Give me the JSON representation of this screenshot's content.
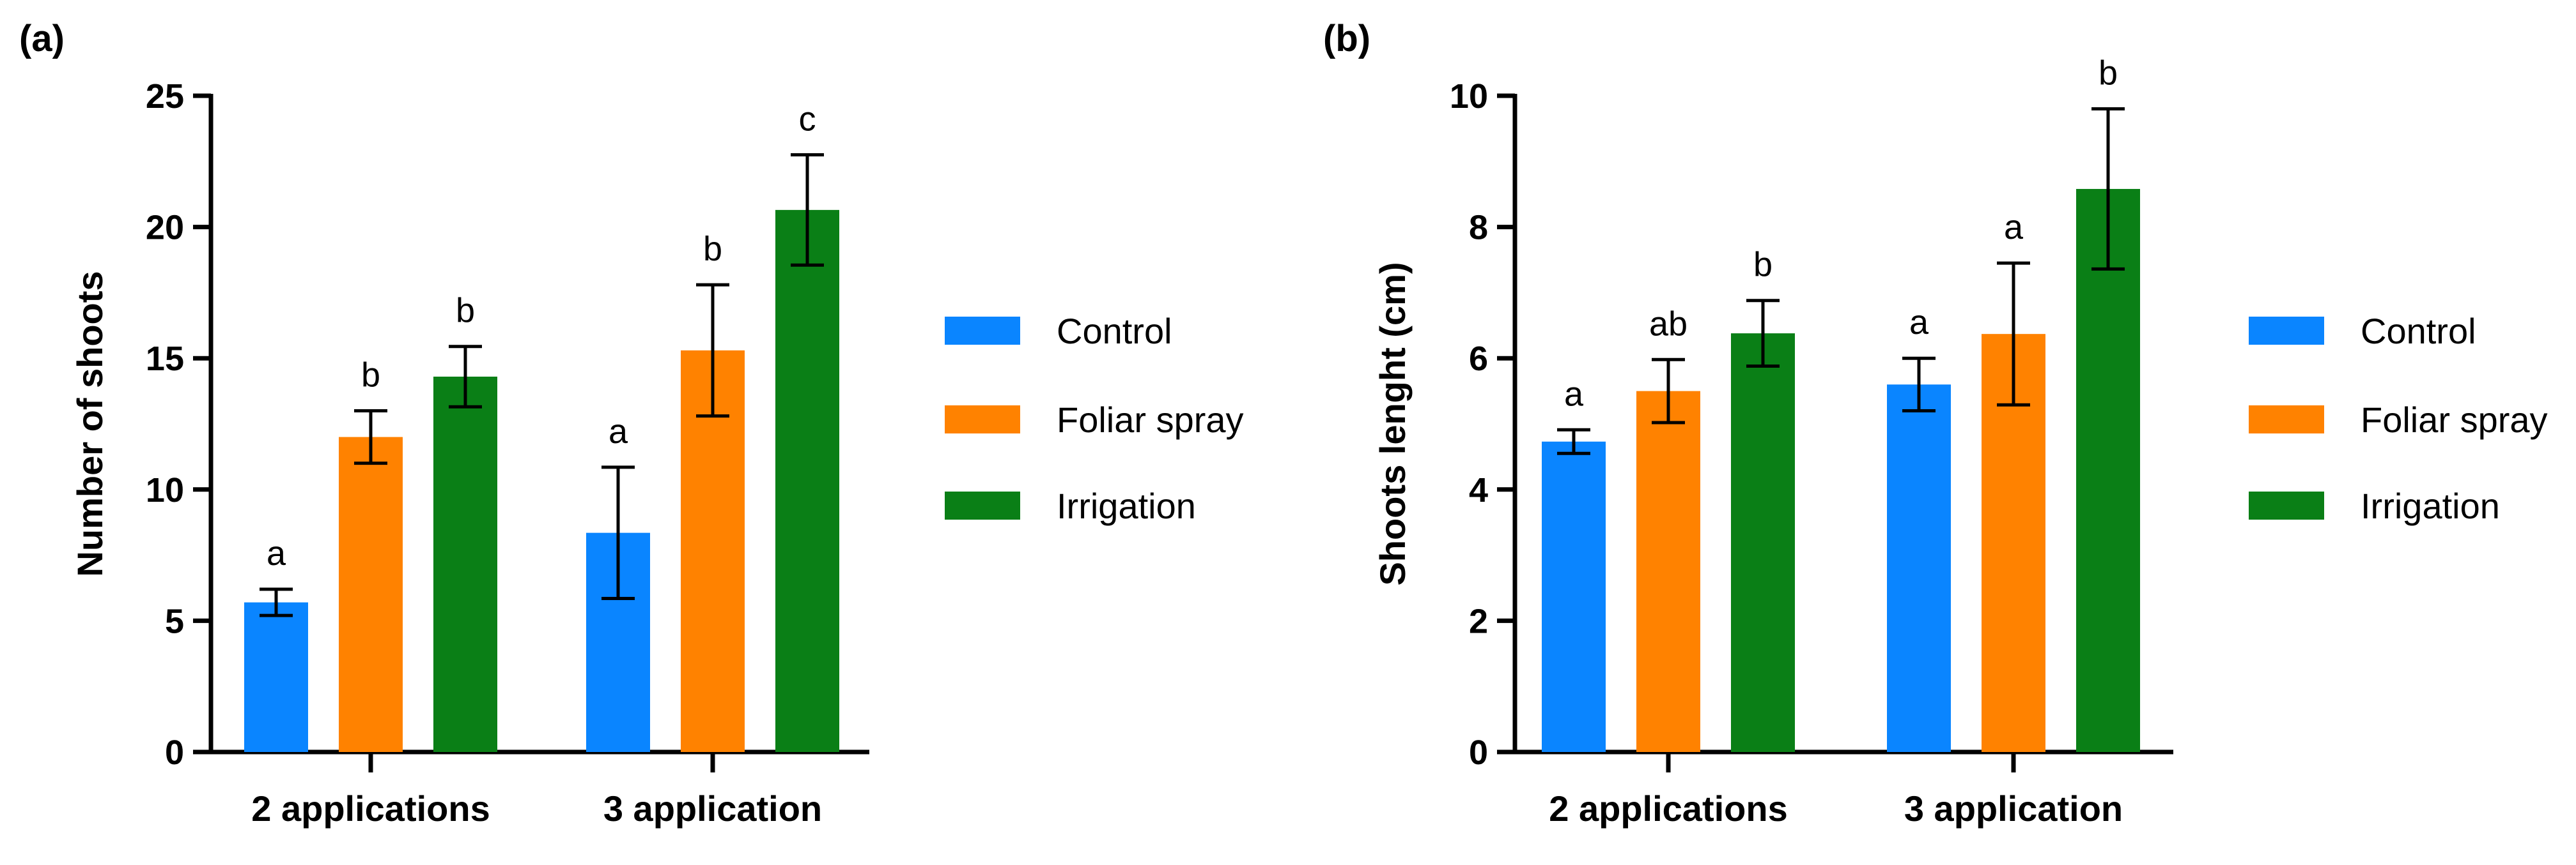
{
  "chart_data": [
    {
      "type": "bar",
      "panel_label": "(a)",
      "ylabel": "Number of shoots",
      "xlabel": "",
      "ylim": [
        0,
        25
      ],
      "yticks": [
        "0",
        "5",
        "10",
        "15",
        "20",
        "25"
      ],
      "yticks_values": [
        0,
        5,
        10,
        15,
        20,
        25
      ],
      "categories": [
        "2 applications",
        "3 application"
      ],
      "series": [
        {
          "name": "Control",
          "color": "#0a85ff",
          "values": [
            5.7,
            8.35
          ],
          "errors": [
            0.5,
            2.5
          ],
          "letters": [
            "a",
            "a"
          ]
        },
        {
          "name": "Foliar spray",
          "color": "#ff8200",
          "values": [
            12.0,
            15.3
          ],
          "errors": [
            1.0,
            2.5
          ],
          "letters": [
            "b",
            "b"
          ]
        },
        {
          "name": "Irrigation",
          "color": "#0a7f16",
          "values": [
            14.3,
            20.65
          ],
          "errors": [
            1.15,
            2.1
          ],
          "letters": [
            "b",
            "c"
          ]
        }
      ],
      "legend_position": "right"
    },
    {
      "type": "bar",
      "panel_label": "(b)",
      "ylabel": "Shoots lenght (cm)",
      "xlabel": "",
      "ylim": [
        0,
        10
      ],
      "yticks": [
        "0",
        "2",
        "4",
        "6",
        "8",
        "10"
      ],
      "yticks_values": [
        0,
        2,
        4,
        6,
        8,
        10
      ],
      "categories": [
        "2 applications",
        "3 application"
      ],
      "series": [
        {
          "name": "Control",
          "color": "#0a85ff",
          "values": [
            4.73,
            5.6
          ],
          "errors": [
            0.18,
            0.4
          ],
          "letters": [
            "a",
            "a"
          ]
        },
        {
          "name": "Foliar spray",
          "color": "#ff8200",
          "values": [
            5.5,
            6.37
          ],
          "errors": [
            0.48,
            1.08
          ],
          "letters": [
            "ab",
            "a"
          ]
        },
        {
          "name": "Irrigation",
          "color": "#0a7f16",
          "values": [
            6.38,
            8.58
          ],
          "errors": [
            0.5,
            1.22
          ],
          "letters": [
            "b",
            "b"
          ]
        }
      ],
      "legend_position": "right"
    }
  ]
}
